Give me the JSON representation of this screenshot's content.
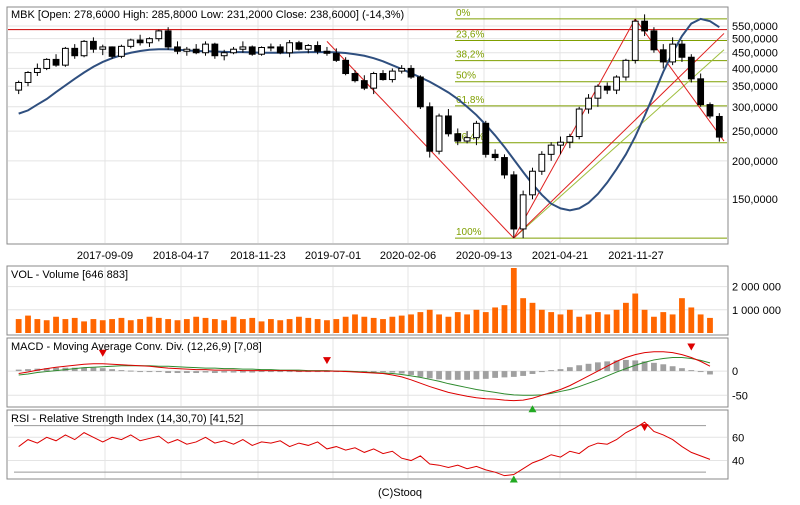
{
  "price_panel": {
    "header": "MBK [Open: 278,6000  High: 285,8000  Low: 231,2000  Close: 238,6000] (-14,3%)",
    "y_ticks": [
      {
        "value": 550000,
        "label": "550,0000"
      },
      {
        "value": 500000,
        "label": "500,0000"
      },
      {
        "value": 450000,
        "label": "450,0000"
      },
      {
        "value": 400000,
        "label": "400,0000"
      },
      {
        "value": 350000,
        "label": "350,0000"
      },
      {
        "value": 300000,
        "label": "300,0000"
      },
      {
        "value": 250000,
        "label": "250,0000"
      },
      {
        "value": 200000,
        "label": "200,0000"
      },
      {
        "value": 150000,
        "label": "150,0000"
      }
    ],
    "x_ticks": [
      "2017-09-09",
      "2018-04-17",
      "2018-11-23",
      "2019-07-01",
      "2020-02-06",
      "2020-09-13",
      "2021-04-21",
      "2021-11-27"
    ],
    "fibonacci": [
      {
        "label": "0%",
        "value": 580000
      },
      {
        "label": "23,6%",
        "value": 493000
      },
      {
        "label": "38,2%",
        "value": 424000
      },
      {
        "label": "50%",
        "value": 362000
      },
      {
        "label": "61,8%",
        "value": 302000
      },
      {
        "label": "76,4%",
        "value": 229000
      },
      {
        "label": "100%",
        "value": 112000
      }
    ],
    "resistance_level": 535000,
    "colors": {
      "up": "#ffffff",
      "down": "#000000",
      "ma": "#2f4f7f",
      "resistance": "#cc0000",
      "fib": "#7f9f00",
      "trend": "#e02020",
      "trend_alt": "#9fbf3f"
    }
  },
  "volume_panel": {
    "header": "VOL - Volume [646 883]",
    "y_ticks": [
      {
        "value": 2000000,
        "label": "2 000 000"
      },
      {
        "value": 1000000,
        "label": "1 000 000"
      }
    ],
    "color": "#ff6600"
  },
  "macd_panel": {
    "header": "MACD - Moving Average Conv. Div. (12,26,9) [7,08]",
    "y_ticks": [
      {
        "value": 0,
        "label": "0"
      },
      {
        "value": -50,
        "label": "-50"
      }
    ],
    "colors": {
      "macd": "#dd0000",
      "signal": "#2e8b2e",
      "hist": "#a0a0a0",
      "sell": "#dd0000",
      "buy": "#22aa22"
    }
  },
  "rsi_panel": {
    "header": "RSI - Relative Strength Index (14,30,70) [41,52]",
    "y_ticks": [
      {
        "value": 60,
        "label": "60"
      },
      {
        "value": 40,
        "label": "40"
      }
    ],
    "levels": [
      70,
      30
    ],
    "colors": {
      "rsi": "#dd0000",
      "level": "#999999",
      "sell": "#dd0000",
      "buy": "#22aa22"
    }
  },
  "footer": "(C)Stooq",
  "chart_data": [
    {
      "type": "candlestick",
      "title": "MBK [Open: 278,6000  High: 285,8000  Low: 231,2000  Close: 238,6000] (-14,3%)",
      "x_tick_labels": [
        "2017-09-09",
        "2018-04-17",
        "2018-11-23",
        "2019-07-01",
        "2020-02-06",
        "2020-09-13",
        "2021-04-21",
        "2021-11-27"
      ],
      "y_scale": "log",
      "ylim": [
        108000,
        620000
      ],
      "candles": [
        [
          340000,
          365000,
          330000,
          360000
        ],
        [
          360000,
          392000,
          350000,
          388000
        ],
        [
          388000,
          415000,
          378000,
          400000
        ],
        [
          400000,
          432000,
          395000,
          428000
        ],
        [
          428000,
          445000,
          405000,
          410000
        ],
        [
          410000,
          470000,
          405000,
          465000
        ],
        [
          465000,
          480000,
          430000,
          440000
        ],
        [
          440000,
          495000,
          435000,
          490000
        ],
        [
          490000,
          505000,
          450000,
          462000
        ],
        [
          462000,
          478000,
          442000,
          470000
        ],
        [
          470000,
          472000,
          430000,
          438000
        ],
        [
          438000,
          478000,
          432000,
          472000
        ],
        [
          472000,
          500000,
          465000,
          495000
        ],
        [
          495000,
          515000,
          475000,
          485000
        ],
        [
          485000,
          505000,
          470000,
          500000
        ],
        [
          500000,
          535000,
          490000,
          530000
        ],
        [
          530000,
          545000,
          460000,
          470000
        ],
        [
          470000,
          490000,
          445000,
          455000
        ],
        [
          455000,
          470000,
          440000,
          462000
        ],
        [
          462000,
          480000,
          445000,
          450000
        ],
        [
          450000,
          490000,
          440000,
          480000
        ],
        [
          480000,
          485000,
          430000,
          440000
        ],
        [
          440000,
          460000,
          425000,
          450000
        ],
        [
          450000,
          470000,
          445000,
          462000
        ],
        [
          462000,
          490000,
          450000,
          470000
        ],
        [
          470000,
          475000,
          440000,
          445000
        ],
        [
          445000,
          472000,
          440000,
          468000
        ],
        [
          468000,
          482000,
          455000,
          470000
        ],
        [
          470000,
          480000,
          445000,
          450000
        ],
        [
          450000,
          495000,
          435000,
          485000
        ],
        [
          485000,
          492000,
          458000,
          462000
        ],
        [
          462000,
          480000,
          448000,
          475000
        ],
        [
          475000,
          490000,
          445000,
          455000
        ],
        [
          455000,
          470000,
          440000,
          448000
        ],
        [
          448000,
          465000,
          420000,
          425000
        ],
        [
          425000,
          435000,
          380000,
          385000
        ],
        [
          385000,
          395000,
          360000,
          365000
        ],
        [
          365000,
          380000,
          340000,
          345000
        ],
        [
          345000,
          390000,
          330000,
          385000
        ],
        [
          385000,
          395000,
          365000,
          368000
        ],
        [
          368000,
          400000,
          360000,
          392000
        ],
        [
          392000,
          410000,
          385000,
          400000
        ],
        [
          400000,
          410000,
          370000,
          375000
        ],
        [
          375000,
          380000,
          295000,
          300000
        ],
        [
          300000,
          310000,
          205000,
          215000
        ],
        [
          215000,
          285000,
          210000,
          280000
        ],
        [
          280000,
          295000,
          240000,
          245000
        ],
        [
          245000,
          255000,
          225000,
          232000
        ],
        [
          232000,
          250000,
          228000,
          238000
        ],
        [
          238000,
          270000,
          225000,
          265000
        ],
        [
          265000,
          270000,
          205000,
          210000
        ],
        [
          210000,
          218000,
          200000,
          205000
        ],
        [
          205000,
          210000,
          175000,
          180000
        ],
        [
          180000,
          185000,
          112000,
          120000
        ],
        [
          120000,
          160000,
          112000,
          155000
        ],
        [
          155000,
          190000,
          150000,
          185000
        ],
        [
          185000,
          215000,
          180000,
          210000
        ],
        [
          210000,
          230000,
          200000,
          225000
        ],
        [
          225000,
          240000,
          210000,
          230000
        ],
        [
          230000,
          245000,
          220000,
          240000
        ],
        [
          240000,
          300000,
          235000,
          295000
        ],
        [
          295000,
          330000,
          285000,
          320000
        ],
        [
          320000,
          355000,
          300000,
          350000
        ],
        [
          350000,
          360000,
          330000,
          340000
        ],
        [
          340000,
          380000,
          330000,
          375000
        ],
        [
          375000,
          430000,
          365000,
          425000
        ],
        [
          425000,
          580000,
          415000,
          570000
        ],
        [
          570000,
          600000,
          510000,
          530000
        ],
        [
          530000,
          545000,
          450000,
          460000
        ],
        [
          460000,
          480000,
          400000,
          420000
        ],
        [
          420000,
          505000,
          410000,
          480000
        ],
        [
          480000,
          495000,
          420000,
          435000
        ],
        [
          435000,
          445000,
          360000,
          370000
        ],
        [
          370000,
          385000,
          300000,
          305000
        ],
        [
          305000,
          310000,
          275000,
          280000
        ],
        [
          279000,
          286000,
          231000,
          239000
        ]
      ],
      "series": [
        {
          "values": [
            285000,
            292000,
            305000,
            318000,
            335000,
            352000,
            370000,
            388000,
            405000,
            420000,
            432000,
            442000,
            450000,
            456000,
            460000,
            462000,
            462000,
            460000,
            458000,
            456000,
            455000,
            454000,
            453000,
            452000,
            452000,
            451000,
            450000,
            450000,
            450000,
            450000,
            451000,
            452000,
            452000,
            452000,
            451000,
            449000,
            445000,
            440000,
            432000,
            422000,
            410000,
            398000,
            386000,
            374000,
            362000,
            348000,
            334000,
            318000,
            300000,
            282000,
            262000,
            242000,
            222000,
            202000,
            184000,
            168000,
            155000,
            145000,
            140000,
            138000,
            140000,
            146000,
            156000,
            170000,
            188000,
            210000,
            240000,
            280000,
            330000,
            390000,
            450000,
            510000,
            560000,
            580000,
            570000,
            545000
          ]
        }
      ]
    },
    {
      "type": "bar",
      "title": "VOL - Volume [646 883]",
      "ylim": [
        0,
        2800000
      ],
      "series": [
        {
          "values": [
            600000,
            750000,
            600000,
            550000,
            700000,
            600000,
            650000,
            500000,
            600000,
            550000,
            600000,
            650000,
            550000,
            600000,
            700000,
            650000,
            600000,
            550000,
            600000,
            700000,
            650000,
            600000,
            550000,
            700000,
            600000,
            650000,
            500000,
            600000,
            550000,
            600000,
            700000,
            650000,
            600000,
            550000,
            600000,
            700000,
            800000,
            700000,
            650000,
            600000,
            700000,
            750000,
            800000,
            900000,
            1000000,
            800000,
            700000,
            900000,
            800000,
            1000000,
            900000,
            1100000,
            1200000,
            2800000,
            1500000,
            1300000,
            1000000,
            900000,
            800000,
            1000000,
            700000,
            800000,
            900000,
            800000,
            1000000,
            1300000,
            1700000,
            1000000,
            700000,
            900000,
            800000,
            1500000,
            1100000,
            800000,
            650000
          ]
        }
      ]
    },
    {
      "type": "line",
      "title": "MACD - Moving Average Conv. Div. (12,26,9) [7,08]",
      "ylim": [
        -70,
        60
      ],
      "series": [
        {
          "values": [
            -5,
            -2,
            2,
            5,
            8,
            10,
            12,
            14,
            15,
            15,
            14,
            13,
            12,
            11,
            10,
            8,
            6,
            5,
            4,
            3,
            3,
            2,
            2,
            2,
            1,
            1,
            1,
            1,
            1,
            1,
            0,
            0,
            0,
            0,
            0,
            -1,
            -2,
            -3,
            -4,
            -5,
            -8,
            -12,
            -18,
            -25,
            -32,
            -38,
            -44,
            -48,
            -52,
            -55,
            -57,
            -58,
            -60,
            -61,
            -60,
            -56,
            -50,
            -44,
            -38,
            -30,
            -20,
            -10,
            0,
            10,
            20,
            28,
            34,
            38,
            40,
            40,
            38,
            34,
            28,
            20,
            10
          ]
        },
        {
          "values": [
            -8,
            -6,
            -3,
            -1,
            1,
            3,
            5,
            7,
            8,
            9,
            10,
            11,
            11,
            11,
            11,
            10,
            10,
            9,
            8,
            7,
            6,
            6,
            5,
            5,
            4,
            4,
            3,
            3,
            2,
            2,
            2,
            1,
            1,
            1,
            0,
            0,
            -1,
            -2,
            -3,
            -4,
            -5,
            -7,
            -10,
            -13,
            -17,
            -21,
            -26,
            -30,
            -34,
            -38,
            -41,
            -44,
            -47,
            -49,
            -50,
            -50,
            -49,
            -46,
            -42,
            -38,
            -32,
            -25,
            -18,
            -10,
            -2,
            5,
            12,
            18,
            23,
            26,
            28,
            28,
            26,
            22,
            17
          ]
        },
        {
          "values": [
            3,
            4,
            5,
            6,
            7,
            7,
            7,
            7,
            7,
            6,
            4,
            2,
            1,
            0,
            -1,
            -2,
            -4,
            -4,
            -4,
            -4,
            -3,
            -4,
            -3,
            -3,
            -3,
            -3,
            -2,
            -2,
            -1,
            -1,
            -2,
            -1,
            -1,
            -1,
            0,
            -1,
            -1,
            -1,
            -1,
            -1,
            -3,
            -5,
            -8,
            -12,
            -15,
            -17,
            -18,
            -18,
            -18,
            -17,
            -16,
            -14,
            -13,
            -12,
            -10,
            -6,
            -1,
            2,
            4,
            8,
            12,
            15,
            18,
            20,
            22,
            23,
            22,
            20,
            17,
            14,
            10,
            6,
            2,
            -2,
            -7
          ]
        }
      ]
    },
    {
      "type": "line",
      "title": "RSI - Relative Strength Index (14,30,70) [41,52]",
      "ylim": [
        25,
        80
      ],
      "series": [
        {
          "values": [
            52,
            58,
            55,
            60,
            57,
            62,
            58,
            64,
            60,
            56,
            60,
            58,
            62,
            57,
            59,
            61,
            55,
            58,
            54,
            56,
            60,
            55,
            57,
            54,
            58,
            53,
            56,
            55,
            57,
            52,
            55,
            53,
            56,
            50,
            52,
            49,
            51,
            47,
            50,
            46,
            48,
            42,
            40,
            44,
            37,
            36,
            34,
            36,
            33,
            35,
            32,
            30,
            27,
            28,
            33,
            38,
            41,
            45,
            43,
            48,
            46,
            52,
            55,
            54,
            58,
            64,
            68,
            73,
            65,
            62,
            58,
            52,
            47,
            44,
            41
          ]
        }
      ]
    }
  ]
}
